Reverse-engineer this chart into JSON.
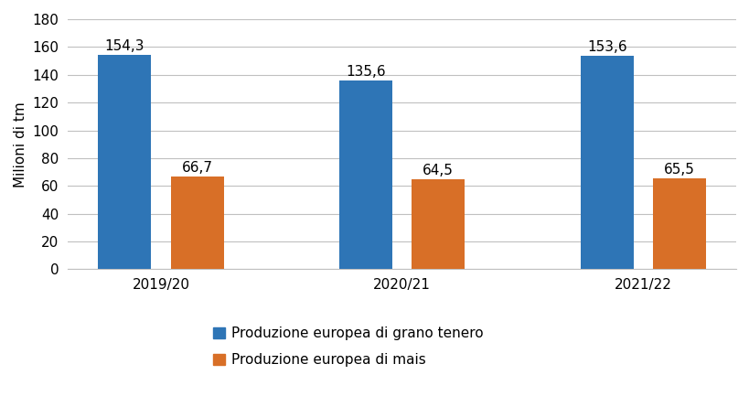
{
  "categories": [
    "2019/20",
    "2020/21",
    "2021/22"
  ],
  "grano_values": [
    154.3,
    135.6,
    153.6
  ],
  "mais_values": [
    66.7,
    64.5,
    65.5
  ],
  "grano_color": "#2E75B6",
  "mais_color": "#D86F27",
  "ylabel": "Milioni di tm",
  "ylim": [
    0,
    180
  ],
  "yticks": [
    0,
    20,
    40,
    60,
    80,
    100,
    120,
    140,
    160,
    180
  ],
  "legend_grano": "Produzione europea di grano tenero",
  "legend_mais": "Produzione europea di mais",
  "bar_width": 0.22,
  "bar_gap": 0.08,
  "label_fontsize": 11,
  "tick_fontsize": 11,
  "ylabel_fontsize": 11,
  "legend_fontsize": 11,
  "background_color": "#ffffff",
  "grid_color": "#c0c0c0"
}
